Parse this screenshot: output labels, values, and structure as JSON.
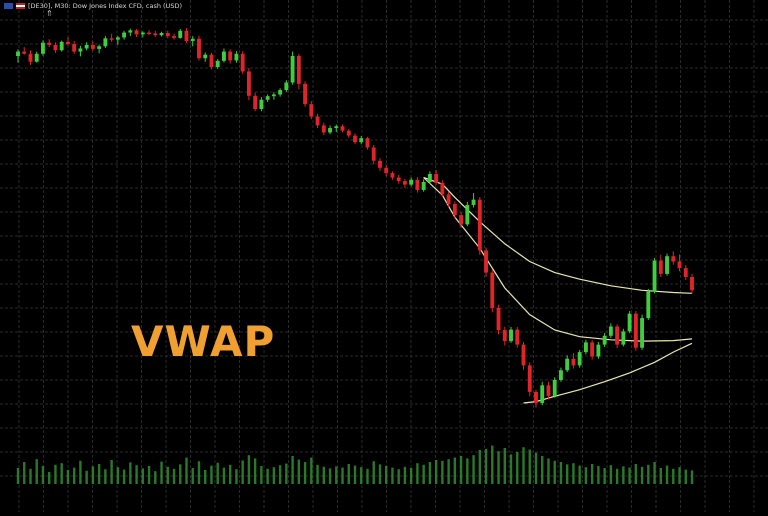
{
  "header": {
    "symbol_text": "[DE30], M30: Dow Jones Index CFD, cash (USD)"
  },
  "watermark": "VWAP",
  "colors": {
    "background": "#000000",
    "grid": "#2a2a2a",
    "bull": "#3ecf3e",
    "bear": "#e0242a",
    "vwap": "#e8e8b0",
    "volume": "#2f8f2f",
    "watermark": "#f0a030"
  },
  "chart_data": {
    "type": "candlestick",
    "title": "",
    "xlabel": "",
    "ylabel": "",
    "grid": true,
    "price_range": [
      0,
      100
    ],
    "candles": [
      [
        90.5,
        92.0,
        89.0,
        91.5
      ],
      [
        91.5,
        92.5,
        90.8,
        91.0
      ],
      [
        91.0,
        91.8,
        88.5,
        89.2
      ],
      [
        89.2,
        91.5,
        89.0,
        91.0
      ],
      [
        91.0,
        94.0,
        90.6,
        93.5
      ],
      [
        93.5,
        94.3,
        92.5,
        93.0
      ],
      [
        93.0,
        93.6,
        91.2,
        91.8
      ],
      [
        91.8,
        94.0,
        91.5,
        93.7
      ],
      [
        93.7,
        94.8,
        92.9,
        93.2
      ],
      [
        93.2,
        93.9,
        91.0,
        91.5
      ],
      [
        91.5,
        92.8,
        90.4,
        92.2
      ],
      [
        92.2,
        93.6,
        91.8,
        93.0
      ],
      [
        93.0,
        93.8,
        91.6,
        92.1
      ],
      [
        92.1,
        93.1,
        91.1,
        92.7
      ],
      [
        92.7,
        95.0,
        92.3,
        94.5
      ],
      [
        94.5,
        95.5,
        93.7,
        94.2
      ],
      [
        94.2,
        95.0,
        93.0,
        94.7
      ],
      [
        94.7,
        96.2,
        94.2,
        95.8
      ],
      [
        95.8,
        96.7,
        95.0,
        96.3
      ],
      [
        96.3,
        96.6,
        94.8,
        95.4
      ],
      [
        95.4,
        96.1,
        94.7,
        95.8
      ],
      [
        95.8,
        96.3,
        95.2,
        95.6
      ],
      [
        95.6,
        96.2,
        94.8,
        95.2
      ],
      [
        95.2,
        96.0,
        94.9,
        95.7
      ],
      [
        95.7,
        96.2,
        94.5,
        95.0
      ],
      [
        95.0,
        95.6,
        94.2,
        94.6
      ],
      [
        94.6,
        96.6,
        94.4,
        96.2
      ],
      [
        96.2,
        96.8,
        93.5,
        93.9
      ],
      [
        93.9,
        95.0,
        92.7,
        94.4
      ],
      [
        94.4,
        95.1,
        89.5,
        90.0
      ],
      [
        90.0,
        91.3,
        89.2,
        90.8
      ],
      [
        90.8,
        91.2,
        87.5,
        88.0
      ],
      [
        88.0,
        89.8,
        87.6,
        89.4
      ],
      [
        89.4,
        92.2,
        89.0,
        91.5
      ],
      [
        91.5,
        92.0,
        88.8,
        89.5
      ],
      [
        89.5,
        91.6,
        89.0,
        91.0
      ],
      [
        91.0,
        91.6,
        86.5,
        87.0
      ],
      [
        87.0,
        87.8,
        80.5,
        81.5
      ],
      [
        81.5,
        82.2,
        78.0,
        78.5
      ],
      [
        78.5,
        81.2,
        78.0,
        80.6
      ],
      [
        80.6,
        81.8,
        80.1,
        81.4
      ],
      [
        81.4,
        82.3,
        80.6,
        81.8
      ],
      [
        81.8,
        83.2,
        81.3,
        82.8
      ],
      [
        82.8,
        85.0,
        82.4,
        84.5
      ],
      [
        84.5,
        91.5,
        84.0,
        90.5
      ],
      [
        90.5,
        91.0,
        83.0,
        84.2
      ],
      [
        84.2,
        84.8,
        79.0,
        79.6
      ],
      [
        79.6,
        80.3,
        76.2,
        76.8
      ],
      [
        76.8,
        77.4,
        74.2,
        74.8
      ],
      [
        74.8,
        75.4,
        72.6,
        73.2
      ],
      [
        73.2,
        74.8,
        72.8,
        74.2
      ],
      [
        74.2,
        75.0,
        73.3,
        74.6
      ],
      [
        74.6,
        75.0,
        73.2,
        73.6
      ],
      [
        73.6,
        74.0,
        72.0,
        72.5
      ],
      [
        72.5,
        73.0,
        70.6,
        71.0
      ],
      [
        71.0,
        72.4,
        70.5,
        71.9
      ],
      [
        71.9,
        72.2,
        69.3,
        69.8
      ],
      [
        69.8,
        70.4,
        66.0,
        66.8
      ],
      [
        66.8,
        67.4,
        64.5,
        65.2
      ],
      [
        65.2,
        65.8,
        63.3,
        64.0
      ],
      [
        64.0,
        64.4,
        62.5,
        63.0
      ],
      [
        63.0,
        63.6,
        61.6,
        62.2
      ],
      [
        62.2,
        62.7,
        60.7,
        61.4
      ],
      [
        61.4,
        63.0,
        61.0,
        62.5
      ],
      [
        62.5,
        63.1,
        59.6,
        60.2
      ],
      [
        60.2,
        62.6,
        59.8,
        62.0
      ],
      [
        62.0,
        64.4,
        61.6,
        63.8
      ],
      [
        63.8,
        64.7,
        61.3,
        61.8
      ],
      [
        61.8,
        62.4,
        58.6,
        59.2
      ],
      [
        59.2,
        59.8,
        56.3,
        57.0
      ],
      [
        57.0,
        57.6,
        53.8,
        54.5
      ],
      [
        54.5,
        55.2,
        51.7,
        52.4
      ],
      [
        52.4,
        57.5,
        52.0,
        56.8
      ],
      [
        56.8,
        59.5,
        56.2,
        58.0
      ],
      [
        58.0,
        58.6,
        45.5,
        46.5
      ],
      [
        46.5,
        47.2,
        40.5,
        41.5
      ],
      [
        41.5,
        42.2,
        32.5,
        33.5
      ],
      [
        33.5,
        34.2,
        27.5,
        28.5
      ],
      [
        28.5,
        29.2,
        25.0,
        26.0
      ],
      [
        26.0,
        29.2,
        25.6,
        28.6
      ],
      [
        28.6,
        29.2,
        24.5,
        25.2
      ],
      [
        25.2,
        25.8,
        19.5,
        20.5
      ],
      [
        20.5,
        21.2,
        13.5,
        14.5
      ],
      [
        14.5,
        15.0,
        11.0,
        12.0
      ],
      [
        12.0,
        16.8,
        11.5,
        16.0
      ],
      [
        16.0,
        16.8,
        12.8,
        13.6
      ],
      [
        13.6,
        17.8,
        13.2,
        17.2
      ],
      [
        17.2,
        20.0,
        16.8,
        19.4
      ],
      [
        19.4,
        22.8,
        19.0,
        22.0
      ],
      [
        22.0,
        23.3,
        19.8,
        20.5
      ],
      [
        20.5,
        24.0,
        20.0,
        23.5
      ],
      [
        23.5,
        26.3,
        23.0,
        25.7
      ],
      [
        25.7,
        26.2,
        21.8,
        22.5
      ],
      [
        22.5,
        25.8,
        22.0,
        25.2
      ],
      [
        25.2,
        27.8,
        24.7,
        27.2
      ],
      [
        27.2,
        30.0,
        26.7,
        29.3
      ],
      [
        29.3,
        29.8,
        24.4,
        25.2
      ],
      [
        25.2,
        28.8,
        24.8,
        28.2
      ],
      [
        28.2,
        32.8,
        27.8,
        32.2
      ],
      [
        32.2,
        32.8,
        23.8,
        24.5
      ],
      [
        24.5,
        32.0,
        24.0,
        31.2
      ],
      [
        31.2,
        37.8,
        30.8,
        37.2
      ],
      [
        37.2,
        44.8,
        36.8,
        44.2
      ],
      [
        44.2,
        45.5,
        40.5,
        41.2
      ],
      [
        41.2,
        45.8,
        40.8,
        45.2
      ],
      [
        45.2,
        46.3,
        43.3,
        44.0
      ],
      [
        44.0,
        45.6,
        41.8,
        42.5
      ],
      [
        42.5,
        43.2,
        39.8,
        40.5
      ],
      [
        40.5,
        41.2,
        36.8,
        37.5
      ]
    ],
    "vwap_anchor_index": 65,
    "vwap_bands": {
      "upper": [
        [
          65,
          63.0
        ],
        [
          68,
          61.5
        ],
        [
          70,
          58.5
        ],
        [
          74,
          53.0
        ],
        [
          78,
          48.0
        ],
        [
          82,
          44.0
        ],
        [
          86,
          41.5
        ],
        [
          90,
          40.0
        ],
        [
          95,
          38.5
        ],
        [
          100,
          37.5
        ],
        [
          105,
          37.0
        ],
        [
          108,
          36.8
        ]
      ],
      "middle": [
        [
          65,
          63.0
        ],
        [
          68,
          59.0
        ],
        [
          70,
          54.0
        ],
        [
          74,
          47.0
        ],
        [
          78,
          38.0
        ],
        [
          82,
          32.0
        ],
        [
          86,
          28.5
        ],
        [
          90,
          27.0
        ],
        [
          95,
          26.3
        ],
        [
          100,
          26.0
        ],
        [
          105,
          26.1
        ],
        [
          108,
          26.5
        ]
      ],
      "lower": [
        [
          81,
          12.0
        ],
        [
          83,
          12.3
        ],
        [
          86,
          13.5
        ],
        [
          90,
          15.0
        ],
        [
          94,
          16.8
        ],
        [
          98,
          18.8
        ],
        [
          102,
          21.2
        ],
        [
          105,
          23.5
        ],
        [
          108,
          25.5
        ]
      ]
    },
    "volume": [
      40,
      55,
      38,
      62,
      45,
      30,
      48,
      52,
      35,
      41,
      58,
      33,
      44,
      50,
      37,
      60,
      42,
      36,
      54,
      47,
      39,
      45,
      32,
      56,
      43,
      38,
      49,
      66,
      40,
      57,
      35,
      46,
      53,
      41,
      48,
      37,
      59,
      72,
      64,
      45,
      38,
      42,
      47,
      51,
      70,
      61,
      55,
      66,
      48,
      43,
      39,
      44,
      41,
      50,
      46,
      42,
      38,
      57,
      49,
      45,
      41,
      37,
      43,
      40,
      52,
      48,
      55,
      60,
      58,
      62,
      66,
      70,
      64,
      72,
      85,
      88,
      96,
      82,
      90,
      74,
      80,
      92,
      86,
      78,
      70,
      64,
      58,
      55,
      49,
      52,
      46,
      42,
      50,
      45,
      40,
      47,
      38,
      44,
      41,
      50,
      43,
      48,
      55,
      40,
      46,
      38,
      42,
      36,
      34
    ],
    "volume_max": 100
  }
}
